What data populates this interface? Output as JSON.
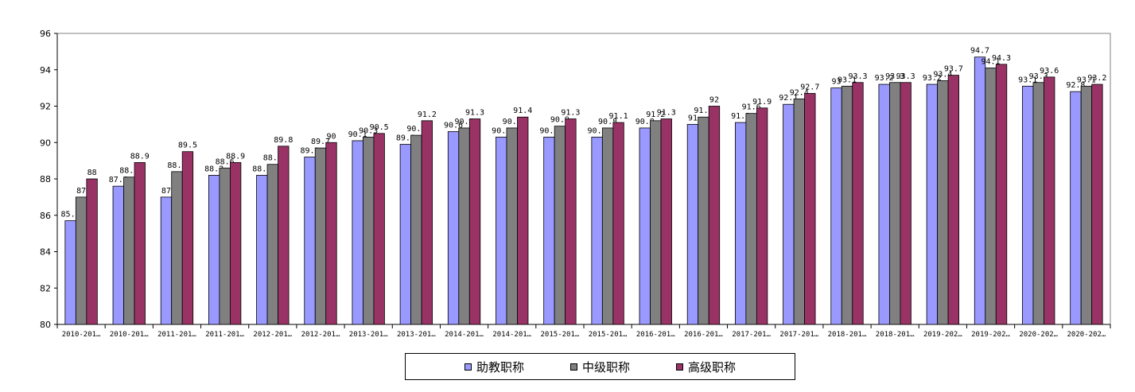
{
  "chart_data": {
    "type": "bar",
    "categories": [
      "2010-201…",
      "2010-201…",
      "2011-201…",
      "2011-201…",
      "2012-201…",
      "2012-201…",
      "2013-201…",
      "2013-201…",
      "2014-201…",
      "2014-201…",
      "2015-201…",
      "2015-201…",
      "2016-201…",
      "2016-201…",
      "2017-201…",
      "2017-201…",
      "2018-201…",
      "2018-201…",
      "2019-202…",
      "2019-202…",
      "2020-202…",
      "2020-202…"
    ],
    "series": [
      {
        "name": "助教职称",
        "color": "#9999ff",
        "values": [
          85.7,
          87.6,
          87,
          88.2,
          88.2,
          89.2,
          90.1,
          89.9,
          90.6,
          90.3,
          90.3,
          90.3,
          90.8,
          91,
          91.1,
          92.1,
          93,
          93.2,
          93.2,
          94.7,
          93.1,
          92.8
        ]
      },
      {
        "name": "中级职称",
        "color": "#808080",
        "values": [
          87,
          88.1,
          88.4,
          88.6,
          88.8,
          89.7,
          90.3,
          90.4,
          90.8,
          90.8,
          90.9,
          90.8,
          91.2,
          91.4,
          91.6,
          92.4,
          93.1,
          93.3,
          93.4,
          94.1,
          93.3,
          93.1
        ]
      },
      {
        "name": "高级职称",
        "color": "#993366",
        "values": [
          88,
          88.9,
          89.5,
          88.9,
          89.8,
          90,
          90.5,
          91.2,
          91.3,
          91.4,
          91.3,
          91.1,
          91.3,
          92,
          91.9,
          92.7,
          93.3,
          93.3,
          93.7,
          94.3,
          93.6,
          93.2
        ]
      }
    ],
    "ylim": [
      80,
      96
    ],
    "yticks": [
      80,
      82,
      84,
      86,
      88,
      90,
      92,
      94,
      96
    ],
    "grid": false,
    "legend_position": "bottom",
    "title": "",
    "xlabel": "",
    "ylabel": ""
  }
}
